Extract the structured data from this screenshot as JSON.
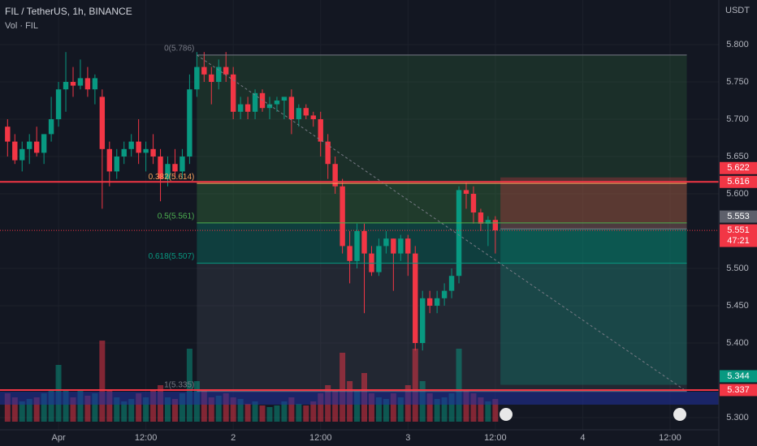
{
  "chart_data": {
    "type": "candlestick",
    "title": "FIL / TetherUS, 1h, BINANCE",
    "subtitle": "Vol · FIL",
    "y_axis_label": "USDT",
    "ylim": [
      5.2837,
      5.8598
    ],
    "yticks": [
      {
        "value": 5.8,
        "label": "5.800"
      },
      {
        "value": 5.75,
        "label": "5.750"
      },
      {
        "value": 5.7,
        "label": "5.700"
      },
      {
        "value": 5.65,
        "label": "5.650"
      },
      {
        "value": 5.6,
        "label": "5.600"
      },
      {
        "value": 5.5,
        "label": "5.500"
      },
      {
        "value": 5.45,
        "label": "5.450"
      },
      {
        "value": 5.4,
        "label": "5.400"
      },
      {
        "value": 5.3,
        "label": "5.300"
      }
    ],
    "xlim": [
      -1.04,
      97.7
    ],
    "xticks": [
      {
        "value": 7,
        "label": "Apr"
      },
      {
        "value": 19,
        "label": "12:00"
      },
      {
        "value": 31,
        "label": "2"
      },
      {
        "value": 43,
        "label": "12:00"
      },
      {
        "value": 55,
        "label": "3"
      },
      {
        "value": 67,
        "label": "12:00"
      },
      {
        "value": 79,
        "label": "4"
      },
      {
        "value": 91,
        "label": "12:00"
      }
    ],
    "up_color": "#089981",
    "down_color": "#f23645",
    "open": [
      5.69,
      5.67,
      5.645,
      5.66,
      5.67,
      5.655,
      5.68,
      5.7,
      5.74,
      5.75,
      5.745,
      5.755,
      5.74,
      5.73,
      5.66,
      5.63,
      5.65,
      5.66,
      5.67,
      5.655,
      5.66,
      5.65,
      5.62,
      5.64,
      5.63,
      5.65,
      5.74,
      5.77,
      5.76,
      5.75,
      5.77,
      5.76,
      5.71,
      5.72,
      5.71,
      5.735,
      5.715,
      5.72,
      5.725,
      5.73,
      5.7,
      5.715,
      5.705,
      5.7,
      5.67,
      5.64,
      5.61,
      5.53,
      5.51,
      5.55,
      5.52,
      5.495,
      5.53,
      5.54,
      5.52,
      5.54,
      5.52,
      5.4,
      5.46,
      5.45,
      5.46,
      5.47,
      5.49,
      5.605,
      5.6,
      5.575,
      5.56,
      5.565
    ],
    "high": [
      5.7,
      5.68,
      5.67,
      5.68,
      5.69,
      5.68,
      5.73,
      5.75,
      5.79,
      5.77,
      5.78,
      5.77,
      5.76,
      5.74,
      5.67,
      5.66,
      5.67,
      5.68,
      5.7,
      5.67,
      5.68,
      5.66,
      5.65,
      5.66,
      5.66,
      5.76,
      5.79,
      5.79,
      5.77,
      5.78,
      5.79,
      5.77,
      5.73,
      5.73,
      5.74,
      5.74,
      5.73,
      5.73,
      5.73,
      5.74,
      5.72,
      5.72,
      5.71,
      5.71,
      5.68,
      5.65,
      5.62,
      5.55,
      5.56,
      5.56,
      5.53,
      5.54,
      5.55,
      5.54,
      5.545,
      5.545,
      5.53,
      5.47,
      5.47,
      5.47,
      5.48,
      5.5,
      5.61,
      5.615,
      5.61,
      5.58,
      5.57,
      5.57
    ],
    "low": [
      5.65,
      5.64,
      5.63,
      5.64,
      5.65,
      5.64,
      5.67,
      5.69,
      5.71,
      5.73,
      5.74,
      5.73,
      5.72,
      5.58,
      5.61,
      5.62,
      5.64,
      5.65,
      5.64,
      5.63,
      5.64,
      5.59,
      5.61,
      5.62,
      5.62,
      5.64,
      5.73,
      5.75,
      5.72,
      5.74,
      5.75,
      5.7,
      5.7,
      5.7,
      5.7,
      5.71,
      5.7,
      5.71,
      5.7,
      5.68,
      5.69,
      5.7,
      5.69,
      5.65,
      5.62,
      5.6,
      5.52,
      5.48,
      5.5,
      5.44,
      5.49,
      5.49,
      5.52,
      5.47,
      5.51,
      5.49,
      5.39,
      5.39,
      5.44,
      5.44,
      5.45,
      5.46,
      5.48,
      5.58,
      5.56,
      5.55,
      5.53,
      5.52
    ],
    "close": [
      5.67,
      5.645,
      5.66,
      5.67,
      5.655,
      5.68,
      5.7,
      5.74,
      5.75,
      5.745,
      5.755,
      5.74,
      5.755,
      5.66,
      5.63,
      5.65,
      5.66,
      5.67,
      5.655,
      5.66,
      5.65,
      5.62,
      5.64,
      5.63,
      5.65,
      5.74,
      5.77,
      5.76,
      5.75,
      5.77,
      5.76,
      5.71,
      5.72,
      5.71,
      5.735,
      5.715,
      5.72,
      5.725,
      5.73,
      5.7,
      5.715,
      5.705,
      5.7,
      5.67,
      5.64,
      5.61,
      5.53,
      5.51,
      5.55,
      5.52,
      5.495,
      5.53,
      5.54,
      5.52,
      5.54,
      5.52,
      5.4,
      5.46,
      5.45,
      5.46,
      5.47,
      5.49,
      5.605,
      5.6,
      5.575,
      5.56,
      5.565,
      5.551
    ],
    "volume": [
      35,
      30,
      25,
      28,
      30,
      35,
      40,
      70,
      40,
      30,
      38,
      32,
      35,
      100,
      40,
      30,
      25,
      28,
      35,
      30,
      40,
      45,
      30,
      28,
      35,
      90,
      50,
      38,
      30,
      32,
      35,
      30,
      28,
      22,
      25,
      20,
      18,
      20,
      25,
      30,
      22,
      20,
      25,
      35,
      45,
      40,
      85,
      50,
      40,
      60,
      35,
      30,
      28,
      35,
      30,
      45,
      90,
      50,
      35,
      28,
      30,
      35,
      90,
      40,
      35,
      30,
      25,
      28
    ],
    "volume_lim": [
      0,
      250
    ],
    "horizontal_lines": [
      5.616,
      5.337
    ],
    "horizontal_line_color": "#f23645",
    "fib": {
      "x_range": [
        26,
        93.3
      ],
      "levels": [
        {
          "value": 5.786,
          "label": "0(5.786)",
          "color": "#787b86"
        },
        {
          "value": 5.614,
          "label": "0.382(5.614)",
          "color": "#f7a35c"
        },
        {
          "value": 5.561,
          "label": "0.5(5.561)",
          "color": "#4caf50"
        },
        {
          "value": 5.507,
          "label": "0.618(5.507)",
          "color": "#089981"
        },
        {
          "value": 5.335,
          "label": "1(5.335)",
          "color": "#787b86"
        }
      ]
    },
    "position": {
      "x_range": [
        67.7,
        93.3
      ],
      "entry": 5.553,
      "stop": 5.622,
      "target": 5.344
    },
    "price_badges": [
      {
        "value": 5.337,
        "color": "#f23645"
      },
      {
        "value": 5.344,
        "color": "#089981"
      },
      {
        "value": 5.551,
        "color": "#f23645",
        "countdown": "47:21"
      },
      {
        "value": 5.553,
        "color": "#5d606b"
      },
      {
        "value": 5.616,
        "color": "#f23645"
      },
      {
        "value": 5.622,
        "color": "#f23645"
      }
    ]
  }
}
